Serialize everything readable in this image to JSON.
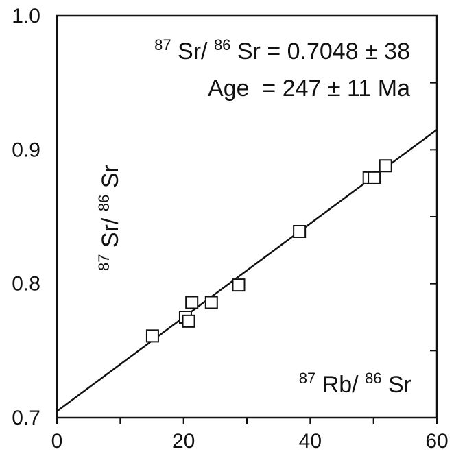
{
  "chart_data": {
    "type": "scatter",
    "annotations": {
      "ratio_line": {
        "sup1": "87",
        "mid1": "Sr/",
        "sup2": "86",
        "mid2": "Sr = 0.7048 ± 38"
      },
      "age_line": "Age  = 247 ± 11 Ma"
    },
    "ylabel": {
      "sup1": "87",
      "mid1": "Sr/",
      "sup2": "86",
      "mid2": "Sr"
    },
    "xlabel": {
      "sup1": "87",
      "mid1": "Rb/",
      "sup2": "86",
      "mid2": "Sr"
    },
    "x_ticks": [
      "0",
      "20",
      "40",
      "60"
    ],
    "y_ticks": [
      "0.7",
      "0.8",
      "0.9",
      "1.0"
    ],
    "xlim": [
      0,
      60
    ],
    "ylim": [
      0.7,
      1.0
    ],
    "grid": false,
    "marker": "open-square",
    "points": [
      {
        "x": 15.1,
        "y": 0.761
      },
      {
        "x": 20.3,
        "y": 0.775
      },
      {
        "x": 20.8,
        "y": 0.772
      },
      {
        "x": 21.3,
        "y": 0.786
      },
      {
        "x": 24.4,
        "y": 0.786
      },
      {
        "x": 28.7,
        "y": 0.799
      },
      {
        "x": 38.3,
        "y": 0.839
      },
      {
        "x": 49.3,
        "y": 0.879
      },
      {
        "x": 50.1,
        "y": 0.879
      },
      {
        "x": 51.9,
        "y": 0.888
      }
    ],
    "fit_line": {
      "x": [
        0,
        60
      ],
      "y": [
        0.7048,
        0.915
      ]
    }
  }
}
